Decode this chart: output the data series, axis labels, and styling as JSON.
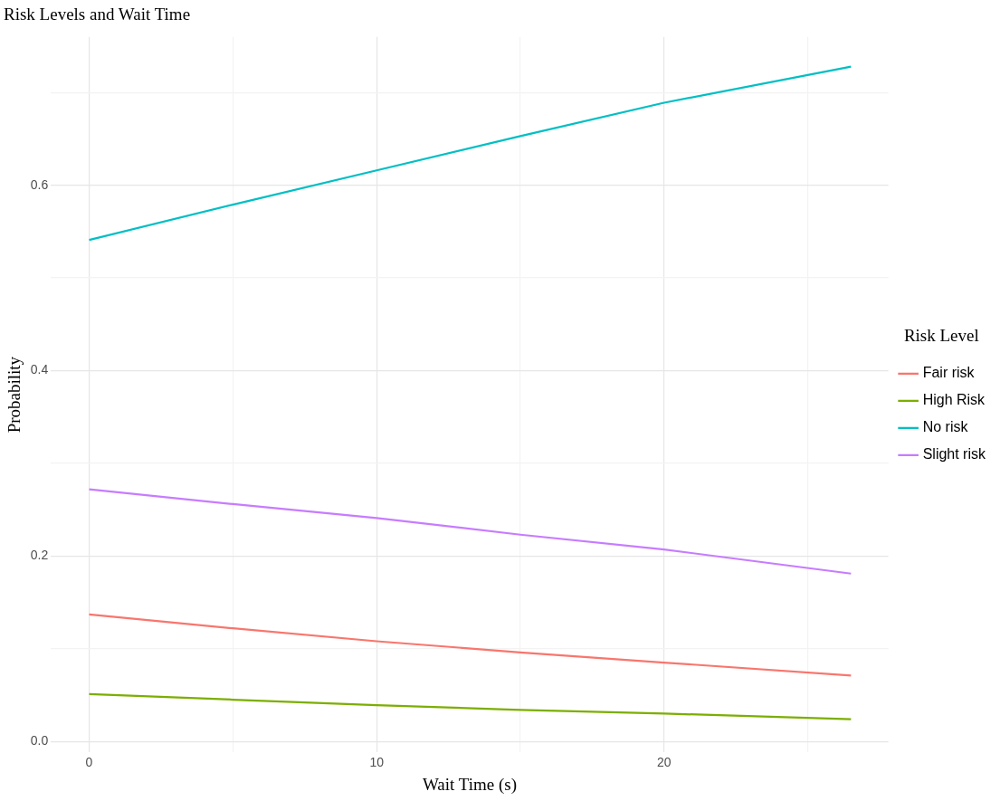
{
  "chart_data": {
    "type": "line",
    "title": "Risk Levels and Wait Time",
    "xlabel": "Wait Time (s)",
    "ylabel": "Probability",
    "legend_title": "Risk Level",
    "legend": "right",
    "grid": true,
    "marker": "none",
    "line_style": "solid",
    "xlim": [
      -1.33,
      27.8
    ],
    "ylim": [
      -0.012,
      0.76
    ],
    "xticks": [
      0,
      {
        "value": 5,
        "label": null
      },
      10,
      {
        "value": 15,
        "label": null
      },
      20,
      {
        "value": 25,
        "label": null
      }
    ],
    "yticks": [
      {
        "value": 0,
        "label": "0.0"
      },
      {
        "value": 0.1,
        "label": null
      },
      0.2,
      {
        "value": 0.3,
        "label": null
      },
      0.4,
      {
        "value": 0.5,
        "label": null
      },
      0.6,
      {
        "value": 0.7,
        "label": null
      }
    ],
    "x": [
      0,
      5,
      10,
      15,
      20,
      26.5
    ],
    "series": [
      {
        "name": "Fair risk",
        "color": "#f8766d",
        "values": [
          0.137,
          0.122,
          0.108,
          0.096,
          0.085,
          0.071
        ]
      },
      {
        "name": "High Risk",
        "color": "#7cae00",
        "values": [
          0.051,
          0.045,
          0.039,
          0.034,
          0.03,
          0.024
        ]
      },
      {
        "name": "No risk",
        "color": "#00bfc4",
        "values": [
          0.541,
          0.579,
          0.616,
          0.653,
          0.689,
          0.728
        ]
      },
      {
        "name": "Slight risk",
        "color": "#c77cff",
        "values": [
          0.272,
          0.256,
          0.241,
          0.223,
          0.207,
          0.181
        ]
      }
    ]
  }
}
